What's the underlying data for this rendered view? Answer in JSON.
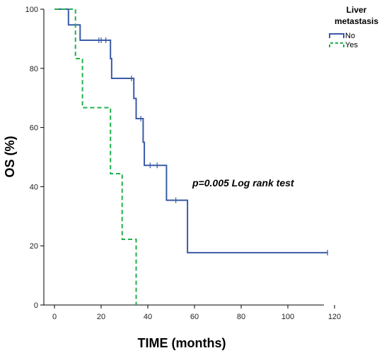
{
  "chart_data": {
    "type": "line",
    "step": true,
    "xlabel": "TIME (months)",
    "ylabel": "OS (%)",
    "xlim": [
      0,
      120
    ],
    "ylim": [
      0,
      100
    ],
    "x_ticks": [
      0,
      20,
      40,
      60,
      80,
      100,
      120
    ],
    "y_ticks": [
      0,
      20,
      40,
      60,
      80,
      100
    ],
    "grid": false,
    "legend": {
      "title_line1": "Liver",
      "title_line2": "metastasis",
      "position": "top-right"
    },
    "annotation": "p=0.005 Log rank test",
    "series": [
      {
        "name": "No",
        "color": "#3a5ba8",
        "dash": "solid",
        "steps": [
          [
            0,
            100
          ],
          [
            6,
            94.7
          ],
          [
            11,
            89.5
          ],
          [
            24,
            83.3
          ],
          [
            24.5,
            76.6
          ],
          [
            34,
            69.8
          ],
          [
            35,
            63
          ],
          [
            38,
            55
          ],
          [
            38.5,
            47.2
          ],
          [
            48,
            35.4
          ],
          [
            57,
            17.7
          ],
          [
            117,
            17.7
          ]
        ],
        "censored": [
          [
            19,
            89.5
          ],
          [
            20,
            89.5
          ],
          [
            22,
            89.5
          ],
          [
            33,
            76.6
          ],
          [
            37,
            63
          ],
          [
            41,
            47.2
          ],
          [
            44,
            47.2
          ],
          [
            52,
            35.4
          ],
          [
            117,
            17.7
          ]
        ]
      },
      {
        "name": "Yes",
        "color": "#1fb04a",
        "dash": "dashed",
        "steps": [
          [
            0,
            100
          ],
          [
            9,
            83.3
          ],
          [
            12,
            66.7
          ],
          [
            24,
            44.4
          ],
          [
            29,
            22.2
          ],
          [
            35,
            0
          ]
        ],
        "censored": []
      }
    ]
  }
}
